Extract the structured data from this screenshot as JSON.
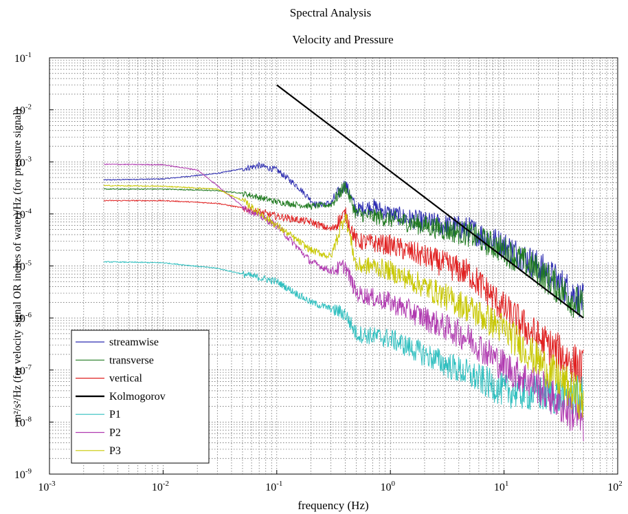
{
  "chart_data": {
    "type": "line",
    "title": "Spectral Analysis",
    "subtitle": "Velocity and Pressure",
    "xlabel": "frequency (Hz)",
    "ylabel": "m²/s²/Hz (for velocity signal OR inches of water)/Hz (for pressure signal)",
    "x_scale": "log",
    "y_scale": "log",
    "xlim": [
      0.001,
      100
    ],
    "ylim": [
      1e-09,
      0.1
    ],
    "grid": true,
    "legend_position": "bottom-left",
    "x_ticks": [
      {
        "base": "10",
        "exp": "-3",
        "value": 0.001
      },
      {
        "base": "10",
        "exp": "-2",
        "value": 0.01
      },
      {
        "base": "10",
        "exp": "-1",
        "value": 0.1
      },
      {
        "base": "10",
        "exp": "0",
        "value": 1
      },
      {
        "base": "10",
        "exp": "1",
        "value": 10
      },
      {
        "base": "10",
        "exp": "2",
        "value": 100
      }
    ],
    "y_ticks": [
      {
        "base": "10",
        "exp": "-9",
        "value": 1e-09
      },
      {
        "base": "10",
        "exp": "-8",
        "value": 1e-08
      },
      {
        "base": "10",
        "exp": "-7",
        "value": 1e-07
      },
      {
        "base": "10",
        "exp": "-6",
        "value": 1e-06
      },
      {
        "base": "10",
        "exp": "-5",
        "value": 1e-05
      },
      {
        "base": "10",
        "exp": "-4",
        "value": 0.0001
      },
      {
        "base": "10",
        "exp": "-3",
        "value": 0.001
      },
      {
        "base": "10",
        "exp": "-2",
        "value": 0.01
      },
      {
        "base": "10",
        "exp": "-1",
        "value": 0.1
      }
    ],
    "series": [
      {
        "name": "streamwise",
        "color": "#2b2bb0",
        "noise": 0.12,
        "x": [
          0.003,
          0.01,
          0.03,
          0.07,
          0.1,
          0.15,
          0.22,
          0.3,
          0.4,
          0.5,
          0.7,
          1,
          2,
          5,
          10,
          20,
          50
        ],
        "y": [
          0.00045,
          0.00047,
          0.0006,
          0.00085,
          0.0007,
          0.00035,
          0.00015,
          0.00016,
          0.00038,
          0.00012,
          0.00014,
          0.0001,
          7e-05,
          5e-05,
          2.5e-05,
          1e-05,
          2e-06
        ]
      },
      {
        "name": "transverse",
        "color": "#1f7a1f",
        "noise": 0.12,
        "x": [
          0.003,
          0.01,
          0.03,
          0.05,
          0.1,
          0.2,
          0.3,
          0.4,
          0.5,
          0.7,
          1,
          2,
          5,
          10,
          20,
          50
        ],
        "y": [
          0.0003,
          0.0003,
          0.00028,
          0.00025,
          0.00017,
          0.00014,
          0.00015,
          0.00035,
          0.0001,
          9e-05,
          8e-05,
          6e-05,
          4e-05,
          2e-05,
          8e-06,
          1.5e-06
        ]
      },
      {
        "name": "vertical",
        "color": "#e02020",
        "noise": 0.14,
        "x": [
          0.003,
          0.01,
          0.03,
          0.05,
          0.1,
          0.2,
          0.3,
          0.4,
          0.5,
          1,
          2,
          5,
          10,
          20,
          50
        ],
        "y": [
          0.00018,
          0.00018,
          0.00016,
          0.00013,
          9e-05,
          7e-05,
          5e-05,
          0.0001,
          3e-05,
          2.5e-05,
          1.5e-05,
          7e-06,
          1.5e-06,
          4e-07,
          1e-07
        ]
      },
      {
        "name": "Kolmogorov",
        "color": "#000000",
        "noise": 0,
        "x": [
          0.1,
          50
        ],
        "y": [
          0.03,
          1e-06
        ]
      },
      {
        "name": "P1",
        "color": "#2fbfbf",
        "noise": 0.14,
        "x": [
          0.003,
          0.01,
          0.03,
          0.05,
          0.1,
          0.2,
          0.3,
          0.4,
          0.5,
          1,
          2,
          5,
          10,
          20,
          50
        ],
        "y": [
          1.2e-05,
          1.15e-05,
          9e-06,
          7e-06,
          5e-06,
          2e-06,
          1.5e-06,
          1.2e-06,
          5e-07,
          4e-07,
          2e-07,
          8e-08,
          4e-08,
          3.5e-08,
          3e-08
        ]
      },
      {
        "name": "P2",
        "color": "#b03ab0",
        "noise": 0.14,
        "x": [
          0.003,
          0.01,
          0.02,
          0.03,
          0.05,
          0.1,
          0.2,
          0.3,
          0.4,
          0.5,
          1,
          2,
          5,
          10,
          20,
          50
        ],
        "y": [
          0.0009,
          0.00088,
          0.0007,
          0.00035,
          0.00014,
          6e-05,
          1.2e-05,
          8e-06,
          1e-05,
          3e-06,
          2e-06,
          1e-06,
          4e-07,
          1.2e-07,
          5e-08,
          1e-08
        ]
      },
      {
        "name": "P3",
        "color": "#c8c800",
        "noise": 0.14,
        "x": [
          0.003,
          0.01,
          0.03,
          0.05,
          0.1,
          0.2,
          0.3,
          0.4,
          0.5,
          0.7,
          1,
          2,
          5,
          10,
          20,
          50
        ],
        "y": [
          0.00035,
          0.00034,
          0.0003,
          0.00018,
          6e-05,
          2e-05,
          1.5e-05,
          0.0001,
          1e-05,
          1e-05,
          8e-06,
          4e-06,
          1.5e-06,
          6e-07,
          1.5e-07,
          2.5e-08
        ]
      }
    ]
  }
}
